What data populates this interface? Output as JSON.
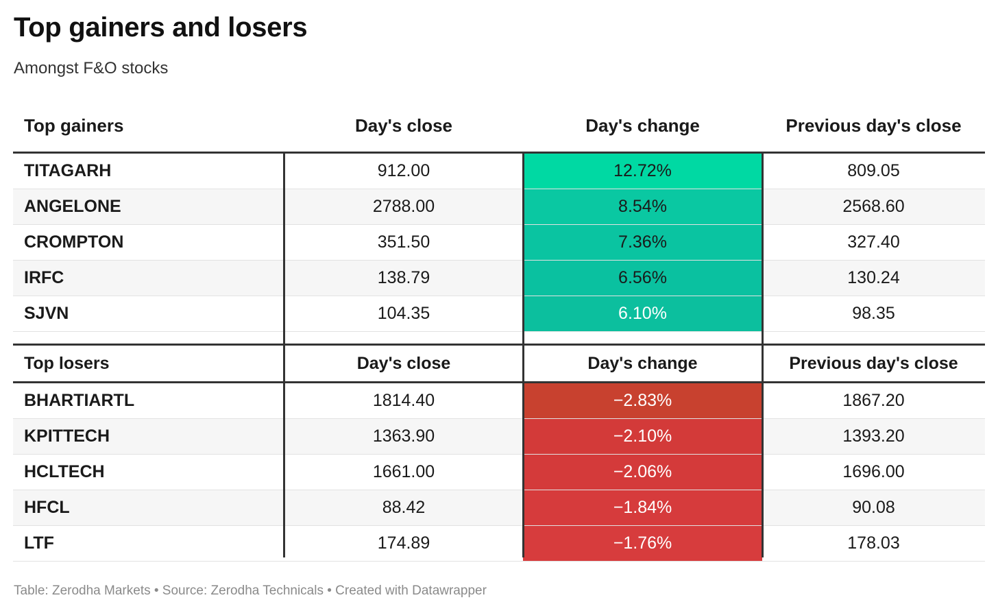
{
  "header": {
    "title": "Top gainers and losers",
    "subtitle": "Amongst F&O stocks"
  },
  "gainers_table": {
    "columns": [
      "Top gainers",
      "Day's close",
      "Day's change",
      "Previous day's close"
    ],
    "rows": [
      {
        "symbol": "TITAGARH",
        "close": "912.00",
        "change": "12.72%",
        "prev_close": "809.05",
        "color": "#00d9a3"
      },
      {
        "symbol": "ANGELONE",
        "close": "2788.00",
        "change": "8.54%",
        "prev_close": "2568.60",
        "color": "#0ac8a2"
      },
      {
        "symbol": "CROMPTON",
        "close": "351.50",
        "change": "7.36%",
        "prev_close": "327.40",
        "color": "#0ac4a1"
      },
      {
        "symbol": "IRFC",
        "close": "138.79",
        "change": "6.56%",
        "prev_close": "130.24",
        "color": "#0ac1a0"
      },
      {
        "symbol": "SJVN",
        "close": "104.35",
        "change": "6.10%",
        "prev_close": "98.35",
        "color": "#0cbf9e"
      }
    ]
  },
  "losers_table": {
    "columns": [
      "Top losers",
      "Day's close",
      "Day's change",
      "Previous day's close"
    ],
    "rows": [
      {
        "symbol": "BHARTIARTL",
        "close": "1814.40",
        "change": "−2.83%",
        "prev_close": "1867.20",
        "color": "#c8412f"
      },
      {
        "symbol": "KPITTECH",
        "close": "1363.90",
        "change": "−2.10%",
        "prev_close": "1393.20",
        "color": "#d33a39"
      },
      {
        "symbol": "HCLTECH",
        "close": "1661.00",
        "change": "−2.06%",
        "prev_close": "1696.00",
        "color": "#d43a3a"
      },
      {
        "symbol": "HFCL",
        "close": "88.42",
        "change": "−1.84%",
        "prev_close": "90.08",
        "color": "#d63b3c"
      },
      {
        "symbol": "LTF",
        "close": "174.89",
        "change": "−1.76%",
        "prev_close": "178.03",
        "color": "#d73c3d"
      }
    ]
  },
  "footer": {
    "credit": "Table: Zerodha Markets • Source: Zerodha Technicals • Created with Datawrapper"
  },
  "chart_data": {
    "type": "table",
    "title": "Top gainers and losers",
    "subtitle": "Amongst F&O stocks",
    "sections": [
      {
        "name": "Top gainers",
        "columns": [
          "Top gainers",
          "Day's close",
          "Day's change",
          "Previous day's close"
        ],
        "rows": [
          [
            "TITAGARH",
            912.0,
            12.72,
            809.05
          ],
          [
            "ANGELONE",
            2788.0,
            8.54,
            2568.6
          ],
          [
            "CROMPTON",
            351.5,
            7.36,
            327.4
          ],
          [
            "IRFC",
            138.79,
            6.56,
            130.24
          ],
          [
            "SJVN",
            104.35,
            6.1,
            98.35
          ]
        ]
      },
      {
        "name": "Top losers",
        "columns": [
          "Top losers",
          "Day's close",
          "Day's change",
          "Previous day's close"
        ],
        "rows": [
          [
            "BHARTIARTL",
            1814.4,
            -2.83,
            1867.2
          ],
          [
            "KPITTECH",
            1363.9,
            -2.1,
            1393.2
          ],
          [
            "HCLTECH",
            1661.0,
            -2.06,
            1696.0
          ],
          [
            "HFCL",
            88.42,
            -1.84,
            90.08
          ],
          [
            "LTF",
            174.89,
            -1.76,
            178.03
          ]
        ]
      }
    ]
  }
}
